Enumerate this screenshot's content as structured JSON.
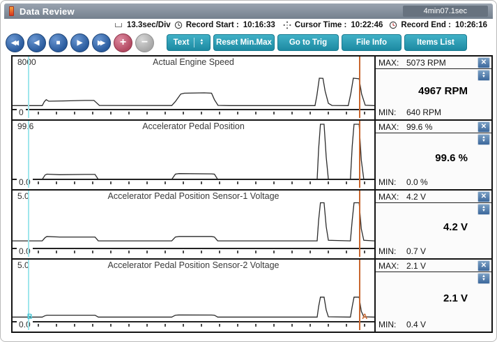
{
  "window": {
    "title": "Data Review",
    "elapsed": "4min07.1sec"
  },
  "info_bar": {
    "time_per_div": "13.3sec/Div",
    "record_start_label": "Record Start :",
    "record_start": "10:16:33",
    "cursor_time_label": "Cursor Time :",
    "cursor_time": "10:22:46",
    "record_end_label": "Record End :",
    "record_end": "10:26:16"
  },
  "icons": {
    "close": "✕",
    "scroll_up": "▲",
    "scroll_down": "▼",
    "spin_up": "▲",
    "spin_down": "▼"
  },
  "toolbar": {
    "playback": [
      {
        "name": "rewind",
        "glyph": "◀◀"
      },
      {
        "name": "step-back",
        "glyph": "◀"
      },
      {
        "name": "stop",
        "glyph": "■"
      },
      {
        "name": "play",
        "glyph": "▶"
      },
      {
        "name": "fast-forward",
        "glyph": "▶▶"
      },
      {
        "name": "zoom-in",
        "glyph": "+"
      },
      {
        "name": "zoom-out",
        "glyph": "−"
      }
    ],
    "text_button": "Text",
    "reset_button": "Reset Min.Max",
    "trig_button": "Go to Trig",
    "file_button": "File Info",
    "items_button": "Items List"
  },
  "cursors": {
    "a_label": "A",
    "b_label": "B",
    "a_pos": 0.958,
    "b_pos": 0.042,
    "a_color": "#c9672f",
    "b_color": "#9fe6ec"
  },
  "channels": [
    {
      "scale_max": "8000",
      "scale_min": "0",
      "title": "Actual Engine Speed",
      "max_label": "MAX:",
      "max": "5073 RPM",
      "current": "4967 RPM",
      "min_label": "MIN:",
      "min": "640 RPM"
    },
    {
      "scale_max": "99.6",
      "scale_min": "0.0",
      "title": "Accelerator Pedal Position",
      "max_label": "MAX:",
      "max": "99.6 %",
      "current": "99.6 %",
      "min_label": "MIN:",
      "min": "0.0 %"
    },
    {
      "scale_max": "5.0",
      "scale_min": "0.0",
      "title": "Accelerator Pedal Position Sensor-1 Voltage",
      "max_label": "MAX:",
      "max": "4.2 V",
      "current": "4.2 V",
      "min_label": "MIN:",
      "min": "0.7 V"
    },
    {
      "scale_max": "5.0",
      "scale_min": "0.0",
      "title": "Accelerator Pedal Position Sensor-2 Voltage",
      "max_label": "MAX:",
      "max": "2.1 V",
      "current": "2.1 V",
      "min_label": "MIN:",
      "min": "0.4 V"
    }
  ],
  "chart_data": [
    {
      "type": "line",
      "title": "Actual Engine Speed",
      "unit": "RPM",
      "ylim": [
        0,
        8000
      ],
      "x_axis": "time, 13.3 sec/div",
      "grid": false,
      "points": [
        [
          0,
          640
        ],
        [
          0.082,
          640
        ],
        [
          0.088,
          1300
        ],
        [
          0.093,
          1600
        ],
        [
          0.1,
          1350
        ],
        [
          0.14,
          1400
        ],
        [
          0.2,
          1480
        ],
        [
          0.225,
          1480
        ],
        [
          0.232,
          1100
        ],
        [
          0.24,
          660
        ],
        [
          0.44,
          650
        ],
        [
          0.45,
          1300
        ],
        [
          0.465,
          2500
        ],
        [
          0.475,
          2650
        ],
        [
          0.53,
          2700
        ],
        [
          0.55,
          2650
        ],
        [
          0.558,
          1600
        ],
        [
          0.568,
          680
        ],
        [
          0.6,
          640
        ],
        [
          0.836,
          640
        ],
        [
          0.841,
          2200
        ],
        [
          0.848,
          5073
        ],
        [
          0.858,
          5050
        ],
        [
          0.864,
          3000
        ],
        [
          0.873,
          1000
        ],
        [
          0.883,
          660
        ],
        [
          0.928,
          640
        ],
        [
          0.935,
          2600
        ],
        [
          0.942,
          5073
        ],
        [
          0.958,
          4967
        ],
        [
          0.965,
          2500
        ],
        [
          0.975,
          700
        ],
        [
          1,
          640
        ]
      ]
    },
    {
      "type": "line",
      "title": "Accelerator Pedal Position",
      "unit": "%",
      "ylim": [
        0,
        99.6
      ],
      "x_axis": "time, 13.3 sec/div",
      "grid": false,
      "points": [
        [
          0,
          0
        ],
        [
          0.082,
          0
        ],
        [
          0.09,
          8
        ],
        [
          0.095,
          9.5
        ],
        [
          0.13,
          8.5
        ],
        [
          0.2,
          9
        ],
        [
          0.228,
          9
        ],
        [
          0.237,
          0
        ],
        [
          0.44,
          0
        ],
        [
          0.45,
          9.5
        ],
        [
          0.46,
          10.5
        ],
        [
          0.55,
          10
        ],
        [
          0.558,
          9.5
        ],
        [
          0.567,
          0
        ],
        [
          0.842,
          0
        ],
        [
          0.846,
          55
        ],
        [
          0.851,
          99.6
        ],
        [
          0.861,
          99.6
        ],
        [
          0.867,
          40
        ],
        [
          0.873,
          0
        ],
        [
          0.934,
          0
        ],
        [
          0.939,
          60
        ],
        [
          0.944,
          99.6
        ],
        [
          0.958,
          99.6
        ],
        [
          0.964,
          35
        ],
        [
          0.971,
          0
        ],
        [
          1,
          0
        ]
      ]
    },
    {
      "type": "line",
      "title": "Accelerator Pedal Position Sensor-1 Voltage",
      "unit": "V",
      "ylim": [
        0,
        5.0
      ],
      "x_axis": "time, 13.3 sec/div",
      "grid": false,
      "points": [
        [
          0,
          0.7
        ],
        [
          0.082,
          0.7
        ],
        [
          0.09,
          1.0
        ],
        [
          0.095,
          1.1
        ],
        [
          0.13,
          1.05
        ],
        [
          0.2,
          1.05
        ],
        [
          0.228,
          1.05
        ],
        [
          0.237,
          0.7
        ],
        [
          0.44,
          0.7
        ],
        [
          0.45,
          1.05
        ],
        [
          0.46,
          1.1
        ],
        [
          0.55,
          1.1
        ],
        [
          0.558,
          1.05
        ],
        [
          0.567,
          0.7
        ],
        [
          0.842,
          0.7
        ],
        [
          0.846,
          2.6
        ],
        [
          0.851,
          4.2
        ],
        [
          0.861,
          4.2
        ],
        [
          0.867,
          2.0
        ],
        [
          0.873,
          0.75
        ],
        [
          0.934,
          0.7
        ],
        [
          0.939,
          2.6
        ],
        [
          0.944,
          4.2
        ],
        [
          0.958,
          4.2
        ],
        [
          0.964,
          1.8
        ],
        [
          0.971,
          0.75
        ],
        [
          1,
          0.7
        ]
      ]
    },
    {
      "type": "line",
      "title": "Accelerator Pedal Position Sensor-2 Voltage",
      "unit": "V",
      "ylim": [
        0,
        5.0
      ],
      "x_axis": "time, 13.3 sec/div",
      "grid": false,
      "points": [
        [
          0,
          0.4
        ],
        [
          0.082,
          0.4
        ],
        [
          0.09,
          0.52
        ],
        [
          0.095,
          0.56
        ],
        [
          0.2,
          0.56
        ],
        [
          0.228,
          0.56
        ],
        [
          0.237,
          0.4
        ],
        [
          0.44,
          0.4
        ],
        [
          0.45,
          0.56
        ],
        [
          0.46,
          0.58
        ],
        [
          0.55,
          0.57
        ],
        [
          0.558,
          0.56
        ],
        [
          0.567,
          0.4
        ],
        [
          0.842,
          0.4
        ],
        [
          0.846,
          1.3
        ],
        [
          0.851,
          2.1
        ],
        [
          0.861,
          2.1
        ],
        [
          0.867,
          1.0
        ],
        [
          0.873,
          0.42
        ],
        [
          0.934,
          0.4
        ],
        [
          0.939,
          1.3
        ],
        [
          0.944,
          2.1
        ],
        [
          0.958,
          2.1
        ],
        [
          0.964,
          0.9
        ],
        [
          0.971,
          0.42
        ],
        [
          1,
          0.4
        ]
      ]
    }
  ]
}
